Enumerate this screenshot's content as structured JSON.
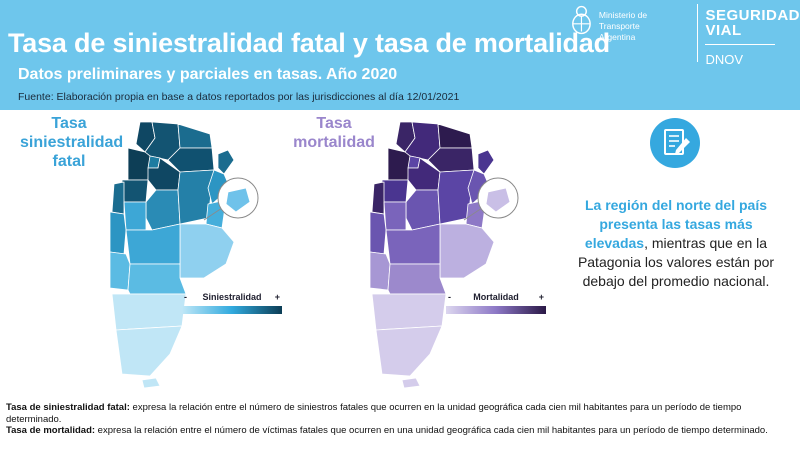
{
  "header": {
    "title": "Tasa de siniestralidad fatal y tasa de mortalidad",
    "subtitle": "Datos preliminares y parciales en tasas. Año 2020",
    "source": "Fuente: Elaboración propia en base a datos reportados por las jurisdicciones al día 12/01/2021"
  },
  "org": {
    "ministry_line1": "Ministerio de Transporte",
    "ministry_line2": "Argentina",
    "brand_line1": "SEGURIDAD",
    "brand_line2": "VIAL",
    "brand_sub": "DNOV"
  },
  "maps": [
    {
      "label_line1": "Tasa",
      "label_line2": "siniestralidad",
      "label_line3": "fatal",
      "legend_min": "-",
      "legend_title": "Siniestralidad",
      "legend_max": "+",
      "color_low": "#bfe7f7",
      "color_high": "#0c3d55"
    },
    {
      "label_line1": "Tasa",
      "label_line2": "mortalidad",
      "legend_min": "-",
      "legend_title": "Mortalidad",
      "legend_max": "+",
      "color_low": "#dcd6ef",
      "color_high": "#2a1846"
    }
  ],
  "message": {
    "highlight_line1": "La región del norte del país",
    "highlight_line2": "presenta las tasas más",
    "highlight_line3": "elevadas",
    "rest": ", mientras que en la Patagonia los valores están por debajo del promedio nacional."
  },
  "definitions": [
    {
      "term": "Tasa de siniestralidad fatal:",
      "text": " expresa la relación entre el número de siniestros fatales que ocurren en la unidad geográfica cada cien mil habitantes para un período de tiempo determinado."
    },
    {
      "term": "Tasa de mortalidad:",
      "text": " expresa la relación entre el número de víctimas fatales que ocurren en una unidad geográfica cada cien mil habitantes para un período de tiempo determinado."
    }
  ],
  "icons": {
    "seal": "coat-of-arms-icon",
    "document": "document-edit-icon"
  }
}
